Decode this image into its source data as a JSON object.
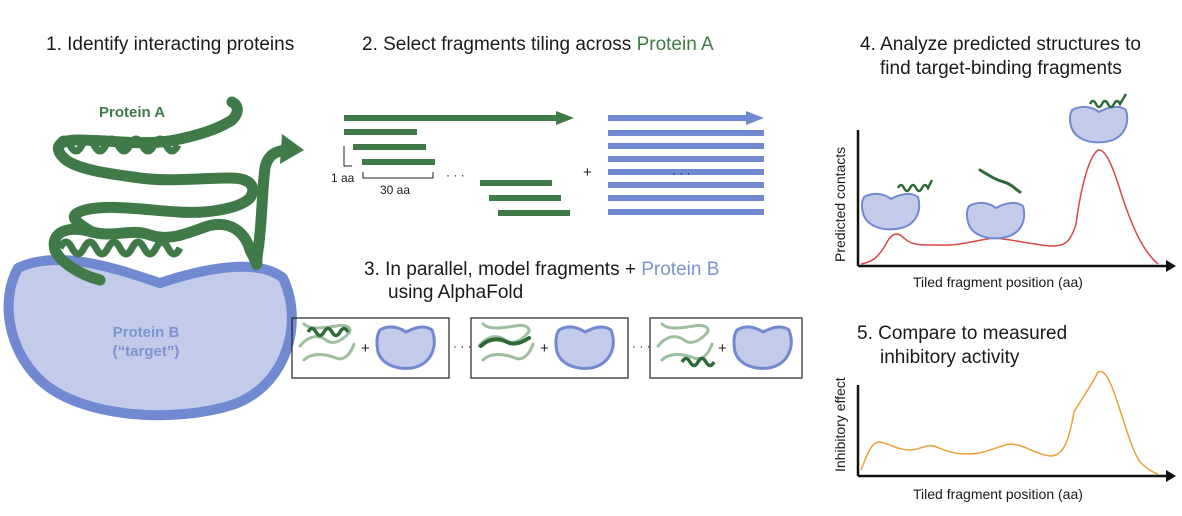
{
  "steps": {
    "s1": "1. Identify interacting proteins",
    "s2_prefix": "2. Select fragments tiling across ",
    "s2_highlight": "Protein A",
    "s3_prefix": "3. In parallel, model fragments + ",
    "s3_highlight": "Protein B",
    "s3_line2": "using AlphaFold",
    "s4_line1": "4. Analyze predicted structures to",
    "s4_line2": "find target-binding fragments",
    "s5_line1": "5. Compare to measured",
    "s5_line2": "inhibitory activity"
  },
  "labels": {
    "protein_a": "Protein A",
    "protein_b_line1": "Protein B",
    "protein_b_line2": "(“target”)",
    "step_size": "1 aa",
    "fragment_length": "30 aa",
    "ellipsis": "· · ·",
    "plus": "+"
  },
  "plot_contacts": {
    "ylabel": "Predicted contacts",
    "xlabel": "Tiled fragment position (aa)"
  },
  "plot_inhibition": {
    "ylabel": "Inhibitory effect",
    "xlabel": "Tiled fragment position (aa)"
  },
  "colors": {
    "protein_a": "#3f7a48",
    "protein_a_light": "#9dbf9f",
    "protein_b_fill": "#c2cbea",
    "protein_b_stroke": "#7189d0",
    "contacts_line": "#d94848",
    "inhibition_line": "#e8a23d"
  }
}
